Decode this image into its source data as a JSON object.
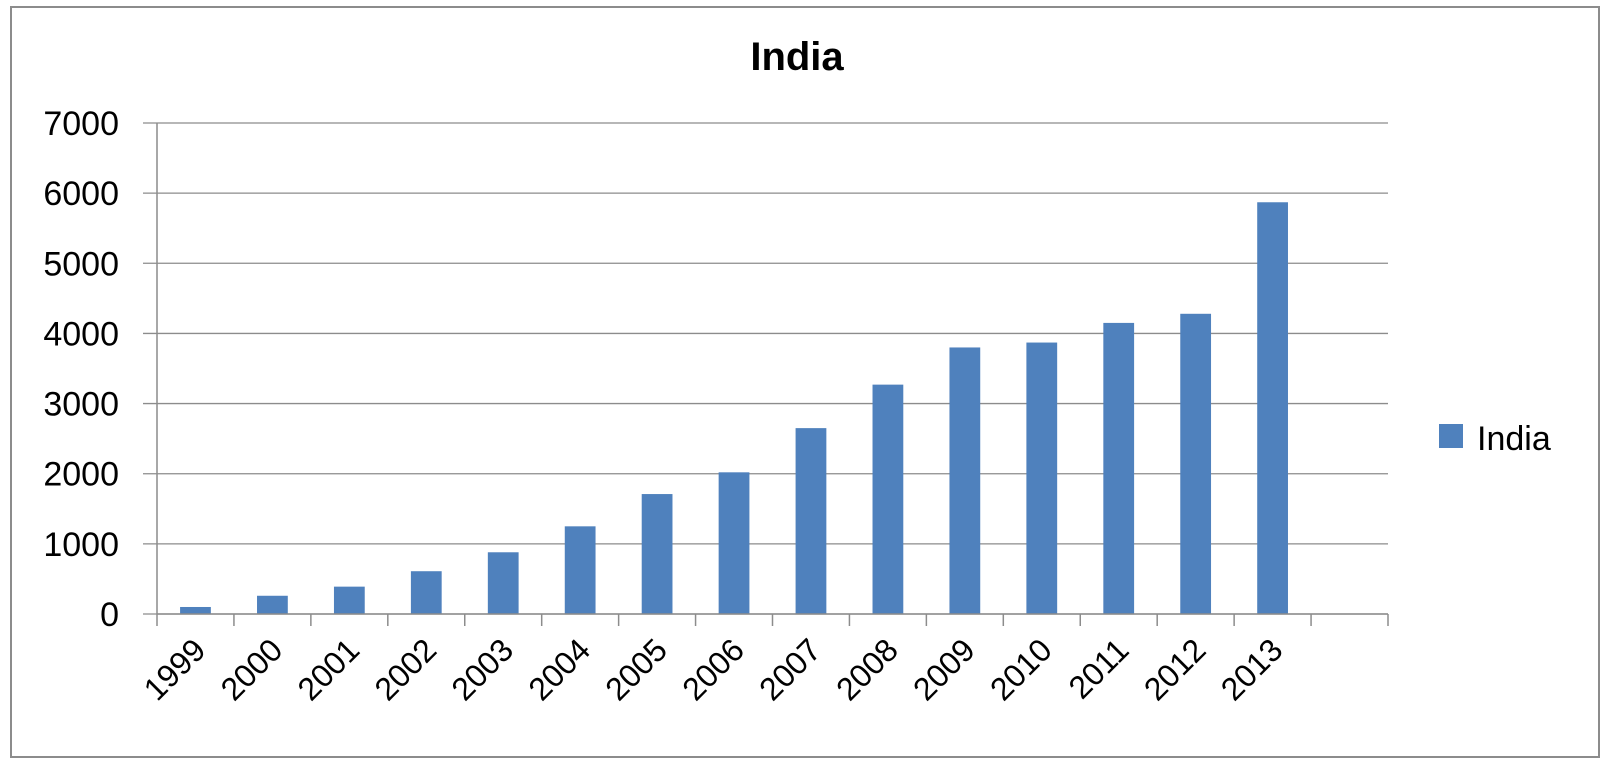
{
  "chart_data": {
    "type": "bar",
    "title": "India",
    "xlabel": "",
    "ylabel": "",
    "categories": [
      "1999",
      "2000",
      "2001",
      "2002",
      "2003",
      "2004",
      "2005",
      "2006",
      "2007",
      "2008",
      "2009",
      "2010",
      "2011",
      "2012",
      "2013"
    ],
    "series": [
      {
        "name": "India",
        "color": "#4F81BD",
        "values": [
          100,
          260,
          390,
          610,
          880,
          1250,
          1710,
          2020,
          2650,
          3270,
          3800,
          3870,
          4150,
          4280,
          5870
        ]
      }
    ],
    "ylim": [
      0,
      7000
    ],
    "yticks": [
      "0",
      "1000",
      "2000",
      "3000",
      "4000",
      "5000",
      "6000",
      "7000"
    ],
    "grid": true,
    "legend_position": "right"
  }
}
